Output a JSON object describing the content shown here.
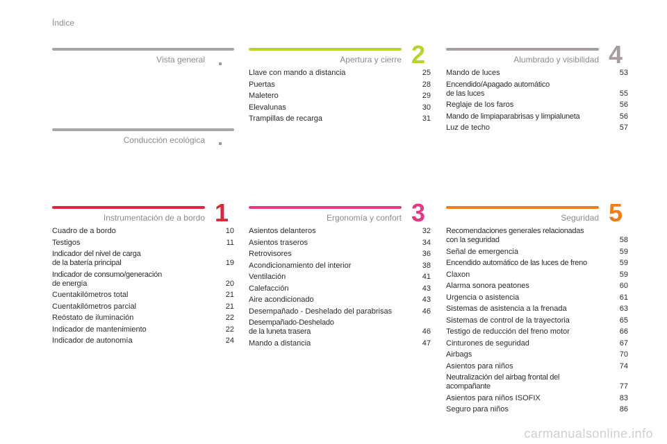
{
  "header": {
    "title": "Índice"
  },
  "colors": {
    "gray": "#a6a6a6",
    "green": "#bcd22c",
    "taupe": "#a79d9c",
    "red": "#e0253b",
    "pink": "#e33788",
    "orange": "#f07d16"
  },
  "sections": {
    "vista": {
      "title": "Vista general"
    },
    "eco": {
      "title": "Conducción ecológica"
    },
    "s2": {
      "number": "2",
      "title": "Apertura y cierre",
      "items": [
        {
          "label": "Llave con mando a distancia",
          "page": "25"
        },
        {
          "label": "Puertas",
          "page": "28"
        },
        {
          "label": "Maletero",
          "page": "29"
        },
        {
          "label": "Elevalunas",
          "page": "30"
        },
        {
          "label": "Trampillas de recarga",
          "page": "31"
        }
      ]
    },
    "s4": {
      "number": "4",
      "title": "Alumbrado y visibilidad",
      "items": [
        {
          "label": "Mando de luces",
          "page": "53"
        },
        {
          "label": "Encendido/Apagado automático\n   de las luces",
          "page": "55"
        },
        {
          "label": "Reglaje de los faros",
          "page": "56"
        },
        {
          "label": "Mando de limpiaparabrisas y limpialuneta",
          "page": "56"
        },
        {
          "label": "Luz de techo",
          "page": "57"
        }
      ]
    },
    "s1": {
      "number": "1",
      "title": "Instrumentación de a bordo",
      "items": [
        {
          "label": "Cuadro de a bordo",
          "page": "10"
        },
        {
          "label": "Testigos",
          "page": "11"
        },
        {
          "label": "Indicador del nivel de carga\n   de la batería principal",
          "page": "19"
        },
        {
          "label": "Indicador de consumo/generación\n   de energía",
          "page": "20"
        },
        {
          "label": "Cuentakilómetros total",
          "page": "21"
        },
        {
          "label": "Cuentakilómetros parcial",
          "page": "21"
        },
        {
          "label": "Reóstato de iluminación",
          "page": "22"
        },
        {
          "label": "Indicador de mantenimiento",
          "page": "22"
        },
        {
          "label": "Indicador de autonomía",
          "page": "24"
        }
      ]
    },
    "s3": {
      "number": "3",
      "title": "Ergonomía y confort",
      "items": [
        {
          "label": "Asientos delanteros",
          "page": "32"
        },
        {
          "label": "Asientos traseros",
          "page": "34"
        },
        {
          "label": "Retrovisores",
          "page": "36"
        },
        {
          "label": "Acondicionamiento del interior",
          "page": "38"
        },
        {
          "label": "Ventilación",
          "page": "41"
        },
        {
          "label": "Calefacción",
          "page": "43"
        },
        {
          "label": "Aire acondicionado",
          "page": "43"
        },
        {
          "label": "Desempañado - Deshelado del parabrisas",
          "page": "46"
        },
        {
          "label": "Desempañado-Deshelado\n   de la luneta trasera",
          "page": "46"
        },
        {
          "label": "Mando a distancia",
          "page": "47"
        }
      ]
    },
    "s5": {
      "number": "5",
      "title": "Seguridad",
      "items": [
        {
          "label": "Recomendaciones generales relacionadas\n   con la seguridad",
          "page": "58"
        },
        {
          "label": "Señal de emergencia",
          "page": "59"
        },
        {
          "label": "Encendido automático de las luces de freno",
          "page": "59"
        },
        {
          "label": "Claxon",
          "page": "59"
        },
        {
          "label": "Alarma sonora peatones",
          "page": "60"
        },
        {
          "label": "Urgencia o asistencia",
          "page": "61"
        },
        {
          "label": "Sistemas de asistencia a la frenada",
          "page": "63"
        },
        {
          "label": "Sistemas de control de la trayectoria",
          "page": "65"
        },
        {
          "label": "Testigo de reducción del freno motor",
          "page": "66"
        },
        {
          "label": "Cinturones de seguridad",
          "page": "67"
        },
        {
          "label": "Airbags",
          "page": "70"
        },
        {
          "label": "Asientos para niños",
          "page": "74"
        },
        {
          "label": "Neutralización del airbag frontal del\n   acompañante",
          "page": "77"
        },
        {
          "label": "Asientos para niños ISOFIX",
          "page": "83"
        },
        {
          "label": "Seguro para niños",
          "page": "86"
        }
      ]
    }
  },
  "watermark": "carmanualsonline.info"
}
